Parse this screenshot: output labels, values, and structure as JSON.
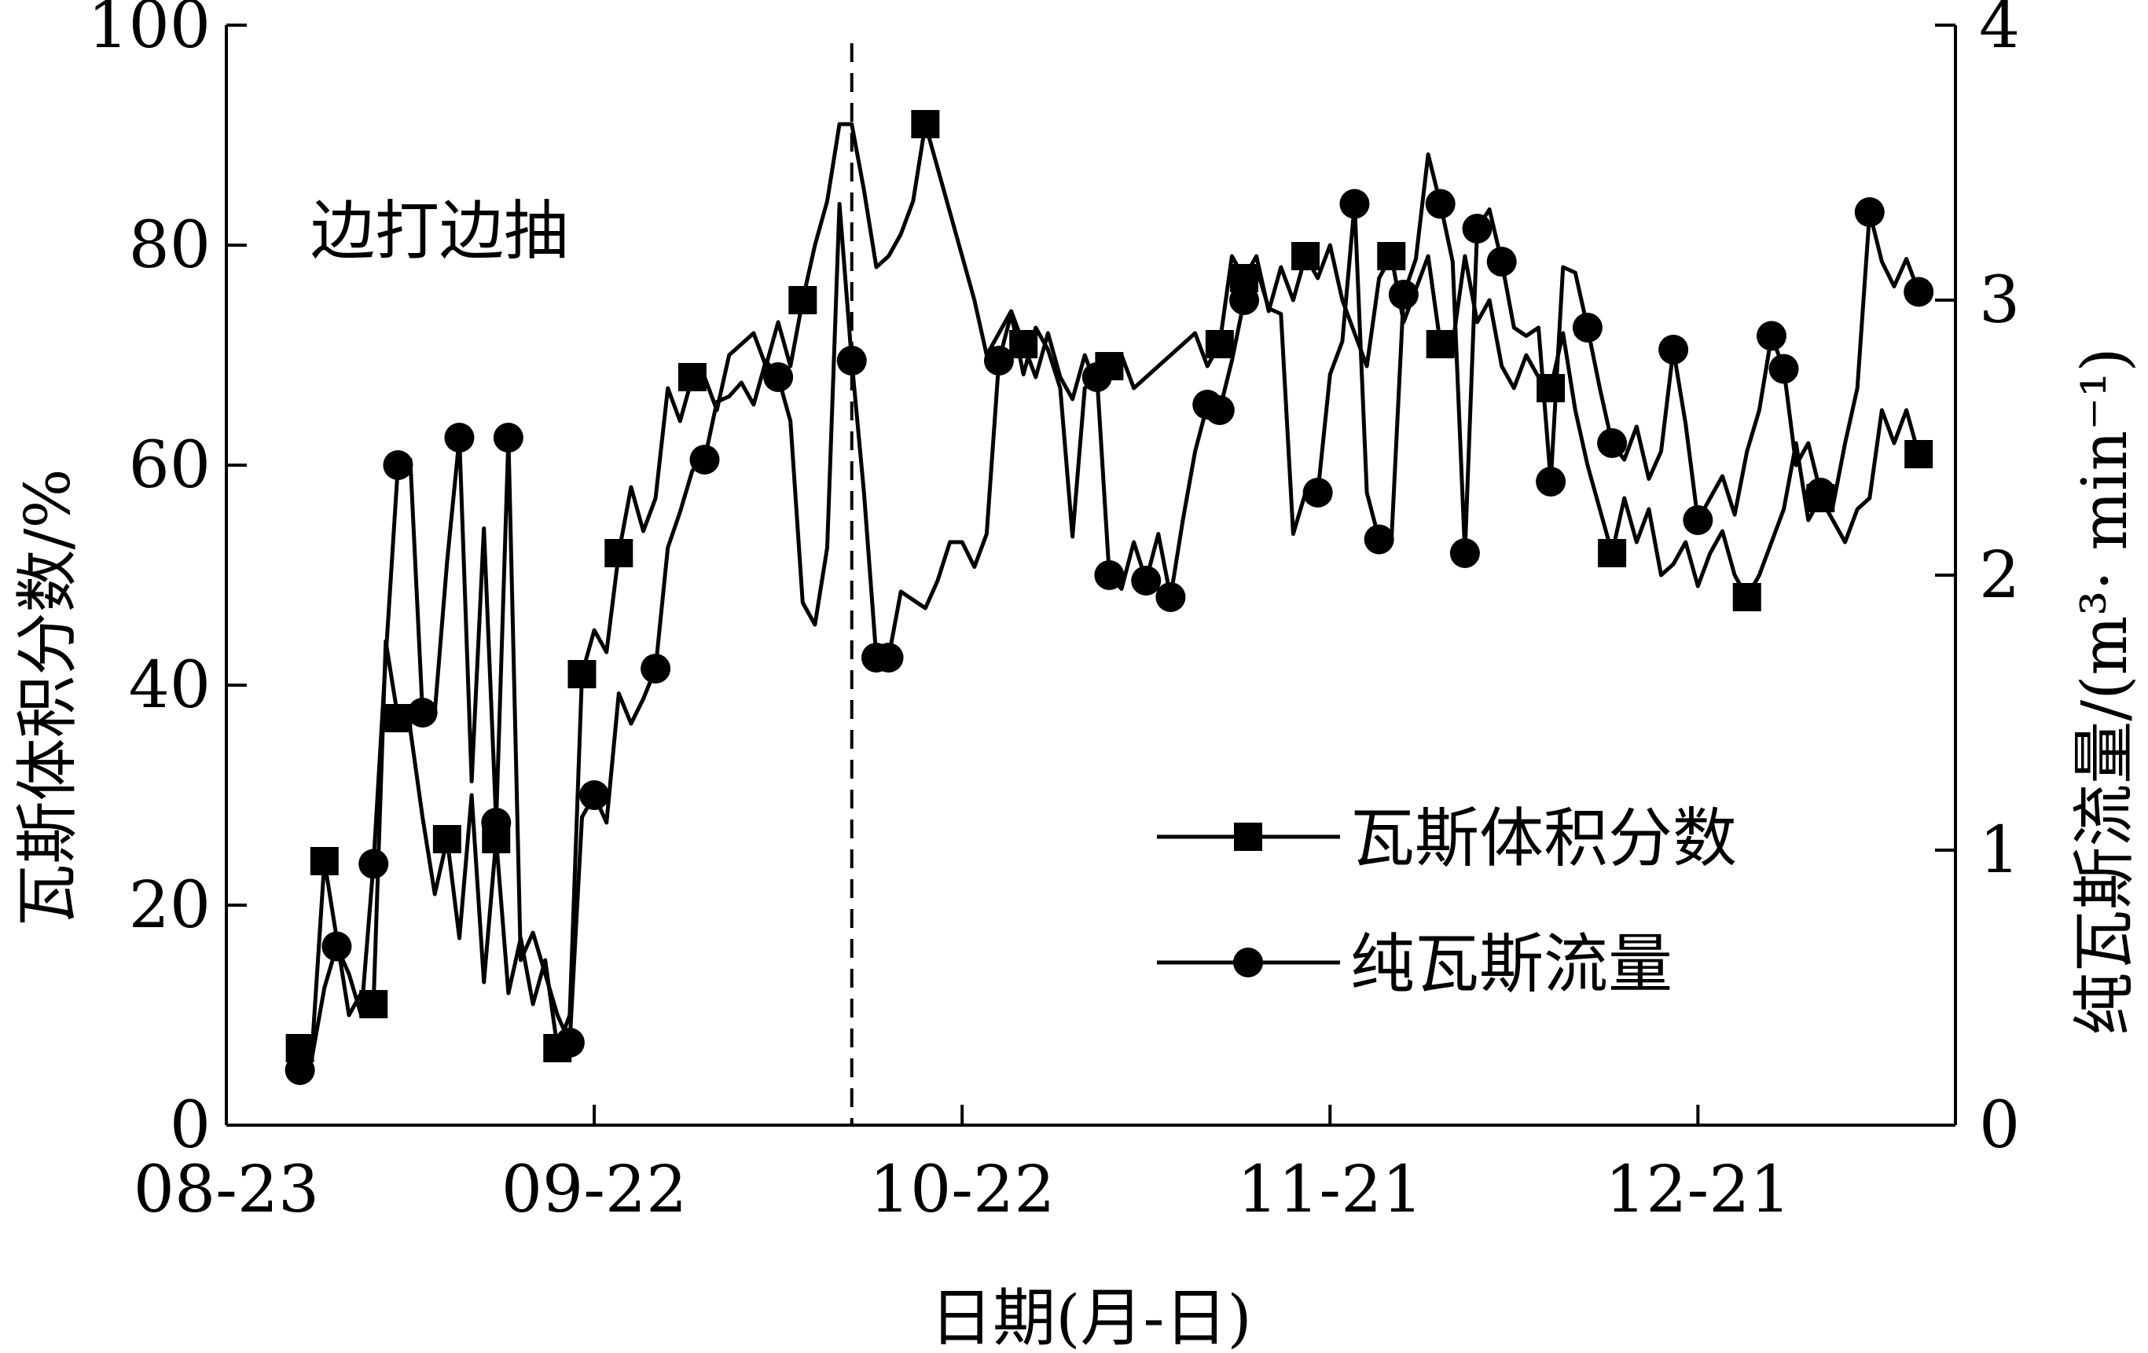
{
  "chart_data": {
    "type": "line",
    "annotation": "边打边抽",
    "xlabel": "日期(月-日)",
    "ylabel_left": "瓦斯体积分数/%",
    "ylabel_right": "纯瓦斯流量/(m³· min⁻¹)",
    "x_ticks": [
      {
        "day": 0,
        "label": "08-23"
      },
      {
        "day": 30,
        "label": "09-22"
      },
      {
        "day": 60,
        "label": "10-22"
      },
      {
        "day": 90,
        "label": "11-21"
      },
      {
        "day": 120,
        "label": "12-21"
      }
    ],
    "xlim": [
      0,
      141
    ],
    "ylim_left": [
      0,
      100
    ],
    "left_ticks": [
      "0",
      "20",
      "40",
      "60",
      "80",
      "100"
    ],
    "ylim_right": [
      0,
      4
    ],
    "right_ticks": [
      "0",
      "1",
      "2",
      "3",
      "4"
    ],
    "vertical_marker_day": 51,
    "legend_position": "center-right",
    "series": [
      {
        "name": "瓦斯体积分数",
        "axis": "left",
        "marker": "square",
        "points": [
          [
            6,
            7
          ],
          [
            7,
            7
          ],
          [
            8,
            24
          ],
          [
            9,
            17
          ],
          [
            10,
            10
          ],
          [
            11,
            12
          ],
          [
            12,
            11
          ],
          [
            13,
            44
          ],
          [
            14,
            37
          ],
          [
            15,
            36
          ],
          [
            16,
            28
          ],
          [
            17,
            21
          ],
          [
            18,
            26
          ],
          [
            19,
            17
          ],
          [
            20,
            30
          ],
          [
            21,
            13
          ],
          [
            22,
            26
          ],
          [
            23,
            12
          ],
          [
            24,
            17
          ],
          [
            25,
            11
          ],
          [
            26,
            15
          ],
          [
            27,
            7
          ],
          [
            28,
            10
          ],
          [
            29,
            41
          ],
          [
            30,
            45
          ],
          [
            31,
            43
          ],
          [
            32,
            52
          ],
          [
            33,
            58
          ],
          [
            34,
            54
          ],
          [
            35,
            57
          ],
          [
            36,
            67
          ],
          [
            37,
            64
          ],
          [
            38,
            68
          ],
          [
            39,
            68
          ],
          [
            40,
            65
          ],
          [
            41,
            70
          ],
          [
            42,
            71
          ],
          [
            43,
            72
          ],
          [
            44,
            69
          ],
          [
            45,
            73
          ],
          [
            46,
            69
          ],
          [
            47,
            75
          ],
          [
            48,
            80
          ],
          [
            49,
            84
          ],
          [
            50,
            91
          ],
          [
            51,
            91
          ],
          [
            52,
            85
          ],
          [
            53,
            78
          ],
          [
            54,
            79
          ],
          [
            55,
            81
          ],
          [
            56,
            84
          ],
          [
            57,
            91
          ],
          [
            58,
            87
          ],
          [
            59,
            83
          ],
          [
            60,
            79
          ],
          [
            61,
            75
          ],
          [
            62,
            70
          ],
          [
            63,
            72
          ],
          [
            64,
            74
          ],
          [
            65,
            71
          ],
          [
            66,
            68
          ],
          [
            67,
            72
          ],
          [
            68,
            68
          ],
          [
            69,
            66
          ],
          [
            70,
            70
          ],
          [
            71,
            67
          ],
          [
            72,
            69
          ],
          [
            73,
            70
          ],
          [
            74,
            67
          ],
          [
            75,
            68
          ],
          [
            76,
            69
          ],
          [
            77,
            70
          ],
          [
            78,
            71
          ],
          [
            79,
            72
          ],
          [
            80,
            69
          ],
          [
            81,
            71
          ],
          [
            82,
            79
          ],
          [
            83,
            77
          ],
          [
            84,
            79
          ],
          [
            85,
            74
          ],
          [
            86,
            78
          ],
          [
            87,
            75
          ],
          [
            88,
            79
          ],
          [
            89,
            77
          ],
          [
            90,
            80
          ],
          [
            91,
            75
          ],
          [
            92,
            72
          ],
          [
            93,
            69
          ],
          [
            94,
            77
          ],
          [
            95,
            79
          ],
          [
            96,
            73
          ],
          [
            97,
            76
          ],
          [
            98,
            79
          ],
          [
            99,
            71
          ],
          [
            100,
            71
          ],
          [
            101,
            79
          ],
          [
            102,
            73
          ],
          [
            103,
            75
          ],
          [
            104,
            69
          ],
          [
            105,
            67
          ],
          [
            106,
            70
          ],
          [
            107,
            68
          ],
          [
            108,
            67
          ],
          [
            109,
            72
          ],
          [
            110,
            65
          ],
          [
            111,
            60
          ],
          [
            112,
            56
          ],
          [
            113,
            52
          ],
          [
            114,
            57
          ],
          [
            115,
            53
          ],
          [
            116,
            56
          ],
          [
            117,
            50
          ],
          [
            118,
            51
          ],
          [
            119,
            53
          ],
          [
            120,
            49
          ],
          [
            121,
            52
          ],
          [
            122,
            54
          ],
          [
            123,
            50
          ],
          [
            124,
            48
          ],
          [
            125,
            50
          ],
          [
            126,
            53
          ],
          [
            127,
            56
          ],
          [
            128,
            62
          ],
          [
            129,
            55
          ],
          [
            130,
            57
          ],
          [
            131,
            55
          ],
          [
            132,
            53
          ],
          [
            133,
            56
          ],
          [
            134,
            57
          ],
          [
            135,
            65
          ],
          [
            136,
            62
          ],
          [
            137,
            65
          ],
          [
            138,
            61
          ]
        ]
      },
      {
        "name": "纯瓦斯流量",
        "axis": "right",
        "marker": "circle",
        "points": [
          [
            6,
            0.2
          ],
          [
            7,
            0.25
          ],
          [
            8,
            0.5
          ],
          [
            9,
            0.65
          ],
          [
            10,
            0.55
          ],
          [
            11,
            0.4
          ],
          [
            12,
            0.95
          ],
          [
            13,
            1.7
          ],
          [
            14,
            2.4
          ],
          [
            15,
            2.42
          ],
          [
            16,
            1.5
          ],
          [
            17,
            1.5
          ],
          [
            18,
            2.05
          ],
          [
            19,
            2.5
          ],
          [
            20,
            1.25
          ],
          [
            21,
            2.17
          ],
          [
            22,
            1.1
          ],
          [
            23,
            2.5
          ],
          [
            24,
            0.6
          ],
          [
            25,
            0.7
          ],
          [
            26,
            0.55
          ],
          [
            27,
            0.4
          ],
          [
            28,
            0.3
          ],
          [
            29,
            1.12
          ],
          [
            30,
            1.2
          ],
          [
            31,
            1.1
          ],
          [
            32,
            1.57
          ],
          [
            33,
            1.46
          ],
          [
            34,
            1.55
          ],
          [
            35,
            1.66
          ],
          [
            36,
            2.1
          ],
          [
            37,
            2.23
          ],
          [
            38,
            2.38
          ],
          [
            39,
            2.42
          ],
          [
            40,
            2.63
          ],
          [
            41,
            2.65
          ],
          [
            42,
            2.7
          ],
          [
            43,
            2.62
          ],
          [
            44,
            2.78
          ],
          [
            45,
            2.72
          ],
          [
            46,
            2.56
          ],
          [
            47,
            1.9
          ],
          [
            48,
            1.82
          ],
          [
            49,
            2.1
          ],
          [
            50,
            3.35
          ],
          [
            51,
            2.78
          ],
          [
            52,
            2.3
          ],
          [
            53,
            1.7
          ],
          [
            54,
            1.7
          ],
          [
            55,
            1.94
          ],
          [
            56,
            1.91
          ],
          [
            57,
            1.88
          ],
          [
            58,
            1.98
          ],
          [
            59,
            2.12
          ],
          [
            60,
            2.12
          ],
          [
            61,
            2.03
          ],
          [
            62,
            2.15
          ],
          [
            63,
            2.78
          ],
          [
            64,
            2.95
          ],
          [
            65,
            2.73
          ],
          [
            66,
            2.9
          ],
          [
            67,
            2.82
          ],
          [
            68,
            2.68
          ],
          [
            69,
            2.14
          ],
          [
            70,
            2.68
          ],
          [
            71,
            2.72
          ],
          [
            72,
            2.0
          ],
          [
            73,
            1.95
          ],
          [
            74,
            2.12
          ],
          [
            75,
            1.98
          ],
          [
            76,
            2.15
          ],
          [
            77,
            1.92
          ],
          [
            78,
            2.2
          ],
          [
            79,
            2.45
          ],
          [
            80,
            2.62
          ],
          [
            81,
            2.6
          ],
          [
            82,
            2.78
          ],
          [
            83,
            3.0
          ],
          [
            84,
            3.12
          ],
          [
            85,
            2.97
          ],
          [
            86,
            2.95
          ],
          [
            87,
            2.15
          ],
          [
            88,
            2.3
          ],
          [
            89,
            2.3
          ],
          [
            90,
            2.73
          ],
          [
            91,
            2.85
          ],
          [
            92,
            3.35
          ],
          [
            93,
            2.3
          ],
          [
            94,
            2.13
          ],
          [
            95,
            2.12
          ],
          [
            96,
            3.02
          ],
          [
            97,
            3.15
          ],
          [
            98,
            3.53
          ],
          [
            99,
            3.35
          ],
          [
            100,
            3.14
          ],
          [
            101,
            2.08
          ],
          [
            102,
            3.26
          ],
          [
            103,
            3.33
          ],
          [
            104,
            3.14
          ],
          [
            105,
            2.9
          ],
          [
            106,
            2.87
          ],
          [
            107,
            2.9
          ],
          [
            108,
            2.34
          ],
          [
            109,
            3.12
          ],
          [
            110,
            3.1
          ],
          [
            111,
            2.9
          ],
          [
            112,
            2.68
          ],
          [
            113,
            2.48
          ],
          [
            114,
            2.42
          ],
          [
            115,
            2.54
          ],
          [
            116,
            2.35
          ],
          [
            117,
            2.45
          ],
          [
            118,
            2.82
          ],
          [
            119,
            2.55
          ],
          [
            120,
            2.2
          ],
          [
            121,
            2.28
          ],
          [
            122,
            2.36
          ],
          [
            123,
            2.22
          ],
          [
            124,
            2.45
          ],
          [
            125,
            2.6
          ],
          [
            126,
            2.87
          ],
          [
            127,
            2.75
          ],
          [
            128,
            2.4
          ],
          [
            129,
            2.48
          ],
          [
            130,
            2.3
          ],
          [
            131,
            2.25
          ],
          [
            132,
            2.48
          ],
          [
            133,
            2.68
          ],
          [
            134,
            3.32
          ],
          [
            135,
            3.14
          ],
          [
            136,
            3.05
          ],
          [
            137,
            3.15
          ],
          [
            138,
            3.03
          ]
        ],
        "marker_days": [
          6,
          9,
          12,
          14,
          16,
          19,
          22,
          23,
          28,
          30,
          35,
          39,
          45,
          51,
          53,
          54,
          63,
          71,
          72,
          75,
          77,
          80,
          81,
          83,
          89,
          92,
          94,
          96,
          99,
          101,
          102,
          104,
          108,
          111,
          113,
          118,
          120,
          126,
          127,
          130,
          134,
          138
        ]
      }
    ],
    "square_marker_days": [
      6,
      8,
      12,
      14,
      18,
      22,
      27,
      29,
      32,
      38,
      47,
      57,
      65,
      72,
      81,
      83,
      88,
      95,
      99,
      108,
      113,
      124,
      130,
      138
    ]
  }
}
